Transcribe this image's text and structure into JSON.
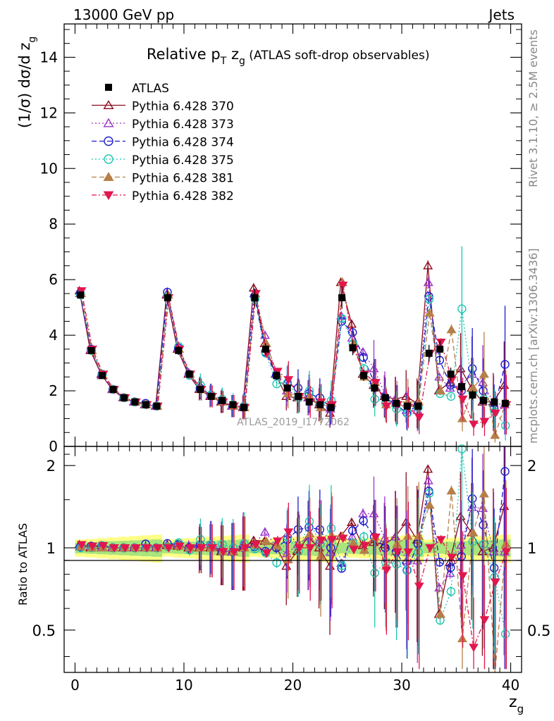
{
  "header": {
    "left": "13000 GeV pp",
    "right": "Jets"
  },
  "side": {
    "rivet": "Rivet 3.1.10, ≥ 2.5M events",
    "mcplots": "mcplots.cern.ch [arXiv:1306.3436]"
  },
  "watermark": "ATLAS_2019_I1772062",
  "chart_data": {
    "type": "scatter",
    "title": "Relative p_T z_g (ATLAS soft-drop observables)",
    "title_parts": {
      "main": "Relative p",
      "sub1": "T",
      "mid": " z",
      "sub2": "g",
      "small": " (ATLAS soft-drop observables)"
    },
    "xlabel": "z_g",
    "xlabel_parts": {
      "main": "z",
      "sub": "g"
    },
    "ylabel_parts": {
      "main": "(1/σ) dσ/d z",
      "sub": "g"
    },
    "ratio_ylabel": "Ratio to ATLAS",
    "xlim": [
      -1,
      41
    ],
    "ylim_main": [
      0,
      15.2
    ],
    "ylim_ratio": [
      0.35,
      2.35
    ],
    "ratio_scale": "log",
    "grid": false,
    "legend_position": "top-left",
    "x_ticks": [
      "0",
      "10",
      "20",
      "30",
      "40"
    ],
    "y_ticks_main": [
      "0",
      "2",
      "4",
      "6",
      "8",
      "10",
      "12",
      "14"
    ],
    "y_ticks_ratio": [
      "0.5",
      "1",
      "2"
    ],
    "x": [
      0.5,
      1.5,
      2.5,
      3.5,
      4.5,
      5.5,
      6.5,
      7.5,
      8.5,
      9.5,
      10.5,
      11.5,
      12.5,
      13.5,
      14.5,
      15.5,
      16.5,
      17.5,
      18.5,
      19.5,
      20.5,
      21.5,
      22.5,
      23.5,
      24.5,
      25.5,
      26.5,
      27.5,
      28.5,
      29.5,
      30.5,
      31.5,
      32.5,
      33.5,
      34.5,
      35.5,
      36.5,
      37.5,
      38.5,
      39.5
    ],
    "data": {
      "name": "ATLAS",
      "values": [
        5.45,
        3.45,
        2.55,
        2.05,
        1.75,
        1.6,
        1.5,
        1.45,
        5.35,
        3.45,
        2.6,
        2.05,
        1.8,
        1.65,
        1.5,
        1.4,
        5.35,
        3.5,
        2.55,
        2.1,
        1.8,
        1.6,
        1.5,
        1.4,
        5.35,
        3.55,
        2.55,
        2.1,
        1.75,
        1.55,
        1.45,
        1.45,
        3.35,
        3.5,
        2.6,
        2.15,
        1.85,
        1.65,
        1.6,
        1.55
      ]
    },
    "series": [
      {
        "name": "Pythia 6.428 370",
        "color": "#8b0a1e",
        "marker": "triangle-open",
        "dash": "",
        "values": [
          5.6,
          3.45,
          2.6,
          2.05,
          1.75,
          1.6,
          1.5,
          1.45,
          5.45,
          3.5,
          2.6,
          2.05,
          1.8,
          1.6,
          1.45,
          1.4,
          5.7,
          3.7,
          2.6,
          1.8,
          1.75,
          1.75,
          1.5,
          1.2,
          5.9,
          4.4,
          2.6,
          2.2,
          1.8,
          1.7,
          1.8,
          1.55,
          6.5,
          2.0,
          2.3,
          2.8,
          2.1,
          1.6,
          1.6,
          2.2
        ]
      },
      {
        "name": "Pythia 6.428 373",
        "color": "#9a32cd",
        "marker": "triangle-open",
        "dash": "2,3",
        "values": [
          5.5,
          3.5,
          2.55,
          2.05,
          1.75,
          1.6,
          1.5,
          1.45,
          5.5,
          3.55,
          2.65,
          2.1,
          1.85,
          1.65,
          1.45,
          1.45,
          5.5,
          4.0,
          2.6,
          2.0,
          1.85,
          1.75,
          1.6,
          1.35,
          4.7,
          3.9,
          3.4,
          2.8,
          1.9,
          1.7,
          1.3,
          1.3,
          5.9,
          2.5,
          2.1,
          2.2,
          2.6,
          2.3,
          1.55,
          1.5
        ]
      },
      {
        "name": "Pythia 6.428 374",
        "color": "#1c1ccd",
        "marker": "circle-open",
        "dash": "7,4",
        "values": [
          5.5,
          3.5,
          2.6,
          2.05,
          1.75,
          1.6,
          1.55,
          1.45,
          5.55,
          3.55,
          2.6,
          2.1,
          1.85,
          1.6,
          1.45,
          1.4,
          5.4,
          3.4,
          2.55,
          2.25,
          2.1,
          1.9,
          1.75,
          1.4,
          4.5,
          4.1,
          3.2,
          2.3,
          1.75,
          1.5,
          1.2,
          1.5,
          5.4,
          3.1,
          2.2,
          2.0,
          2.8,
          2.0,
          1.35,
          2.95
        ]
      },
      {
        "name": "Pythia 6.428 375",
        "color": "#20c6b0",
        "marker": "circle-open",
        "dash": "2,3",
        "values": [
          5.45,
          3.45,
          2.6,
          2.05,
          1.75,
          1.6,
          1.5,
          1.45,
          5.4,
          3.6,
          2.55,
          2.2,
          1.85,
          1.7,
          1.5,
          1.45,
          5.3,
          3.35,
          2.25,
          2.3,
          1.75,
          2.0,
          1.55,
          1.65,
          4.6,
          3.7,
          2.8,
          1.7,
          1.55,
          1.35,
          1.2,
          1.4,
          5.3,
          1.9,
          1.8,
          4.95,
          1.95,
          1.7,
          1.25,
          0.75
        ]
      },
      {
        "name": "Pythia 6.428 381",
        "color": "#b77f48",
        "marker": "triangle-filled",
        "dash": "7,4",
        "values": [
          5.5,
          3.45,
          2.55,
          2.05,
          1.75,
          1.6,
          1.5,
          1.45,
          5.45,
          3.5,
          2.6,
          2.05,
          1.8,
          1.6,
          1.45,
          1.4,
          5.5,
          3.7,
          2.6,
          1.9,
          1.85,
          1.8,
          1.4,
          1.55,
          5.9,
          3.7,
          2.5,
          2.3,
          1.5,
          1.6,
          1.6,
          1.6,
          4.8,
          2.0,
          4.2,
          1.0,
          2.1,
          2.6,
          0.4,
          1.6
        ]
      },
      {
        "name": "Pythia 6.428 382",
        "color": "#e2164d",
        "marker": "triangle-down-filled",
        "dash": "7,3,2,3",
        "values": [
          5.6,
          3.5,
          2.6,
          2.05,
          1.75,
          1.6,
          1.5,
          1.45,
          5.35,
          3.5,
          2.6,
          2.05,
          1.8,
          1.6,
          1.45,
          1.4,
          5.5,
          3.35,
          2.7,
          2.4,
          1.8,
          1.6,
          1.6,
          1.5,
          5.8,
          3.5,
          2.6,
          2.3,
          1.45,
          1.5,
          1.4,
          1.05,
          3.35,
          3.75,
          2.4,
          1.7,
          0.8,
          0.9,
          1.2,
          1.5
        ]
      }
    ]
  }
}
